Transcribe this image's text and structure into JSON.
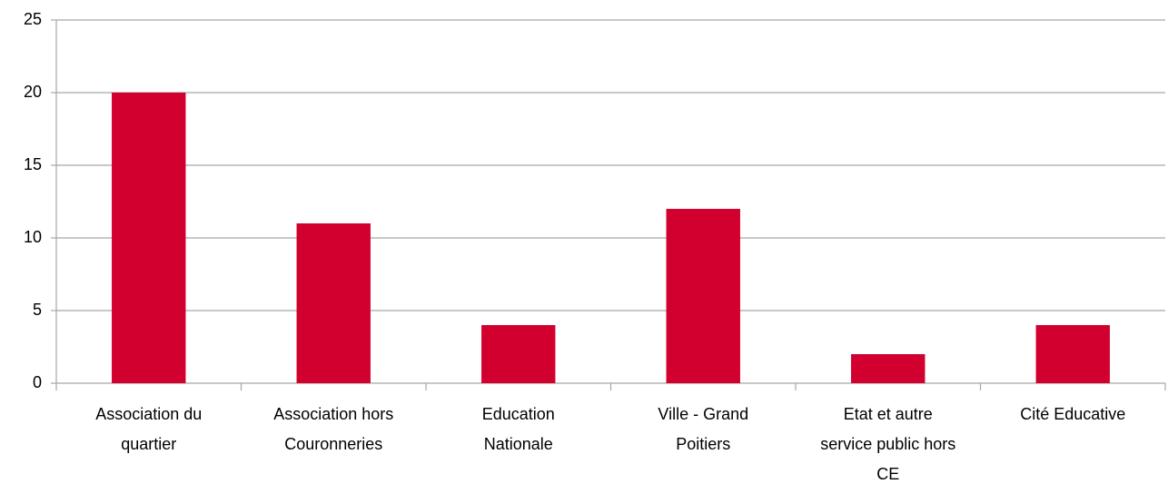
{
  "chart_data": {
    "type": "bar",
    "categories": [
      "Association du quartier",
      "Association hors Couronneries",
      "Education Nationale",
      "Ville - Grand Poitiers",
      "Etat et autre service public hors CE",
      "Cité Educative"
    ],
    "values": [
      20,
      11,
      4,
      12,
      2,
      4
    ],
    "color": "#d2002e",
    "ylim": [
      0,
      25
    ],
    "yticks": [
      0,
      5,
      10,
      15,
      20,
      25
    ],
    "grid": true
  }
}
